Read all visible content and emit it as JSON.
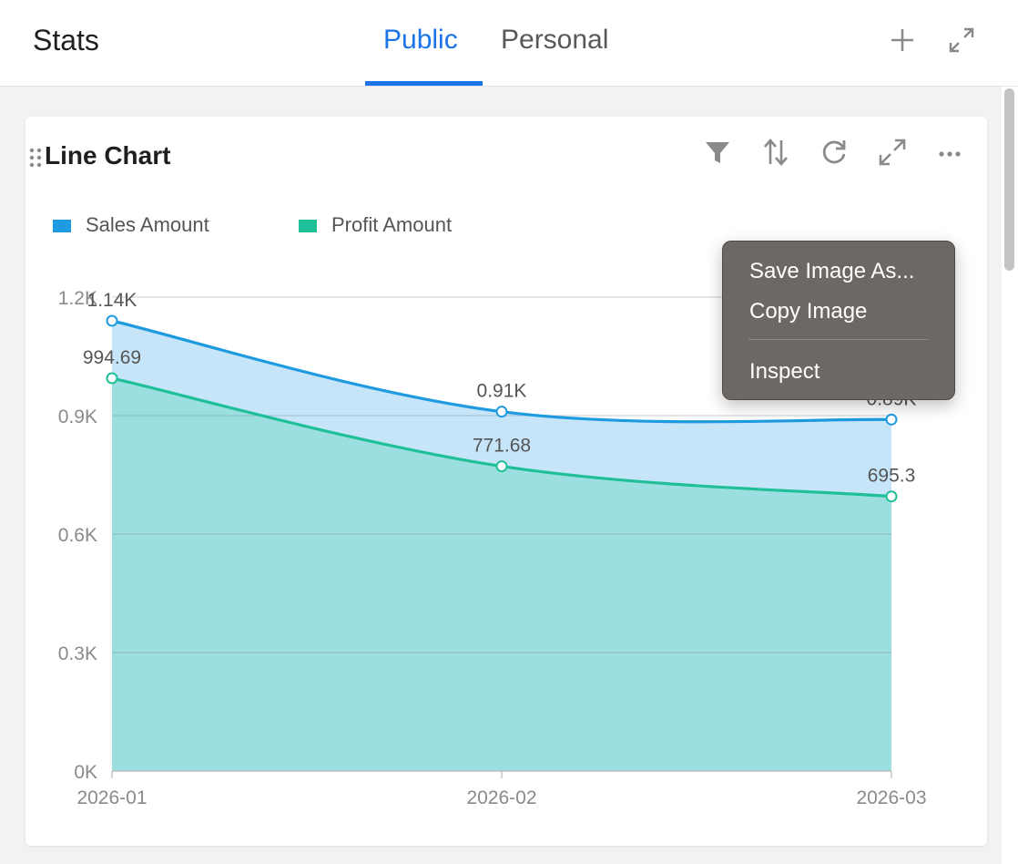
{
  "header": {
    "title": "Stats",
    "tabs": [
      {
        "label": "Public",
        "active": true
      },
      {
        "label": "Personal",
        "active": false
      }
    ],
    "icons": [
      "plus-icon",
      "expand-arrows-icon"
    ],
    "accent_color": "#1a73e8"
  },
  "card": {
    "title": "Line Chart",
    "toolbar_icons": [
      "filter-icon",
      "sort-icon",
      "refresh-icon",
      "fullscreen-icon",
      "more-icon"
    ]
  },
  "chart_data": {
    "type": "area",
    "x": [
      "2026-01",
      "2026-02",
      "2026-03"
    ],
    "series": [
      {
        "name": "Sales Amount",
        "values": [
          1140,
          910,
          890
        ],
        "labels": [
          "1.14K",
          "0.91K",
          "0.89K"
        ],
        "color": "#1e9be0",
        "fill": "#c6e5f8"
      },
      {
        "name": "Profit Amount",
        "values": [
          994.69,
          771.68,
          695.3
        ],
        "labels": [
          "994.69",
          "771.68",
          "695.3"
        ],
        "color": "#1fbf97",
        "fill": "#9cdfe0"
      }
    ],
    "y_ticks": [
      "0K",
      "0.3K",
      "0.6K",
      "0.9K",
      "1.2K"
    ],
    "ylim": [
      0,
      1200
    ],
    "grid": true,
    "legend": "top-left"
  },
  "context_menu": {
    "items": [
      "Save Image As...",
      "Copy Image",
      "Inspect"
    ]
  }
}
